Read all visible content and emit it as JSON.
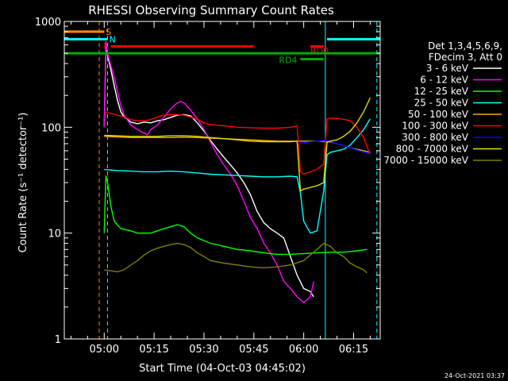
{
  "chart_data": {
    "type": "line",
    "title": "RHESSI Observing Summary Count Rates",
    "xlabel": "Start Time (04-Oct-03 04:45:02)",
    "ylabel": "Count Rate (s⁻¹ detector⁻¹)",
    "y_scale": "log",
    "ylim": [
      1,
      1000
    ],
    "y_ticks": [
      {
        "value": 1,
        "label": "1"
      },
      {
        "value": 10,
        "label": "10"
      },
      {
        "value": 100,
        "label": "100"
      },
      {
        "value": 1000,
        "label": "1000"
      }
    ],
    "xlim_minutes": [
      -12,
      83
    ],
    "x_ticks": [
      {
        "minute": 0,
        "label": "05:00"
      },
      {
        "minute": 15,
        "label": "05:15"
      },
      {
        "minute": 30,
        "label": "05:30"
      },
      {
        "minute": 45,
        "label": "05:45"
      },
      {
        "minute": 60,
        "label": "06:00"
      },
      {
        "minute": 75,
        "label": "06:15"
      }
    ],
    "legend_header": [
      "Det 1,3,4,5,6,9,",
      "FDecim 3, Att 0"
    ],
    "legend_position": "right",
    "series": [
      {
        "name": "3 - 6 keV",
        "color": "#ffffff",
        "points": [
          [
            0,
            100
          ],
          [
            0.5,
            550
          ],
          [
            1,
            480
          ],
          [
            2,
            350
          ],
          [
            3,
            250
          ],
          [
            4,
            180
          ],
          [
            5,
            140
          ],
          [
            6,
            125
          ],
          [
            8,
            112
          ],
          [
            10,
            108
          ],
          [
            12,
            112
          ],
          [
            14,
            110
          ],
          [
            16,
            115
          ],
          [
            18,
            118
          ],
          [
            20,
            124
          ],
          [
            22,
            130
          ],
          [
            24,
            132
          ],
          [
            26,
            128
          ],
          [
            28,
            110
          ],
          [
            30,
            92
          ],
          [
            32,
            75
          ],
          [
            34,
            62
          ],
          [
            36,
            52
          ],
          [
            38,
            44
          ],
          [
            40,
            37
          ],
          [
            42,
            30
          ],
          [
            44,
            23
          ],
          [
            46,
            16
          ],
          [
            48,
            12.5
          ],
          [
            50,
            11
          ],
          [
            52,
            10
          ],
          [
            54,
            9
          ],
          [
            56,
            6
          ],
          [
            58,
            4
          ],
          [
            60,
            3
          ],
          [
            62,
            2.8
          ],
          [
            63,
            2.5
          ]
        ]
      },
      {
        "name": "6 - 12 keV",
        "color": "#ff00ff",
        "points": [
          [
            0,
            100
          ],
          [
            0.5,
            650
          ],
          [
            1,
            500
          ],
          [
            2,
            380
          ],
          [
            3,
            300
          ],
          [
            4,
            220
          ],
          [
            5,
            160
          ],
          [
            6,
            130
          ],
          [
            8,
            105
          ],
          [
            10,
            95
          ],
          [
            12,
            88
          ],
          [
            13,
            85
          ],
          [
            14,
            95
          ],
          [
            16,
            105
          ],
          [
            18,
            125
          ],
          [
            20,
            150
          ],
          [
            22,
            170
          ],
          [
            23,
            175
          ],
          [
            24,
            170
          ],
          [
            26,
            145
          ],
          [
            28,
            120
          ],
          [
            30,
            95
          ],
          [
            32,
            72
          ],
          [
            34,
            55
          ],
          [
            36,
            44
          ],
          [
            38,
            36
          ],
          [
            40,
            28
          ],
          [
            42,
            20
          ],
          [
            44,
            14
          ],
          [
            46,
            11
          ],
          [
            48,
            8
          ],
          [
            50,
            6.5
          ],
          [
            52,
            5
          ],
          [
            54,
            3.5
          ],
          [
            56,
            3
          ],
          [
            58,
            2.5
          ],
          [
            60,
            2.2
          ],
          [
            62,
            2.5
          ],
          [
            63,
            3.5
          ]
        ]
      },
      {
        "name": "12 - 25 keV",
        "color": "#00ff00",
        "points": [
          [
            0,
            10
          ],
          [
            0.5,
            35
          ],
          [
            1,
            30
          ],
          [
            2,
            18
          ],
          [
            3,
            13
          ],
          [
            5,
            11
          ],
          [
            8,
            10.5
          ],
          [
            10,
            10
          ],
          [
            12,
            10
          ],
          [
            14,
            10
          ],
          [
            16,
            10.5
          ],
          [
            18,
            11
          ],
          [
            20,
            11.5
          ],
          [
            22,
            12
          ],
          [
            24,
            11.5
          ],
          [
            26,
            10
          ],
          [
            28,
            9
          ],
          [
            30,
            8.5
          ],
          [
            32,
            8
          ],
          [
            36,
            7.5
          ],
          [
            40,
            7
          ],
          [
            44,
            6.8
          ],
          [
            48,
            6.5
          ],
          [
            52,
            6.3
          ],
          [
            56,
            6.3
          ],
          [
            60,
            6.4
          ],
          [
            64,
            6.5
          ],
          [
            68,
            6.6
          ],
          [
            72,
            6.6
          ],
          [
            76,
            6.8
          ],
          [
            79,
            7
          ]
        ]
      },
      {
        "name": "25 - 50 keV",
        "color": "#00ffff",
        "points": [
          [
            0,
            40
          ],
          [
            4,
            39
          ],
          [
            8,
            38.5
          ],
          [
            12,
            38
          ],
          [
            16,
            38
          ],
          [
            20,
            38.5
          ],
          [
            24,
            38
          ],
          [
            28,
            37
          ],
          [
            32,
            36
          ],
          [
            36,
            35.5
          ],
          [
            40,
            35
          ],
          [
            44,
            34.5
          ],
          [
            48,
            34
          ],
          [
            52,
            34
          ],
          [
            56,
            34.5
          ],
          [
            58,
            34
          ],
          [
            59,
            24
          ],
          [
            60,
            13
          ],
          [
            62,
            10
          ],
          [
            64,
            10.5
          ],
          [
            66,
            25
          ],
          [
            67,
            55
          ],
          [
            68,
            58
          ],
          [
            70,
            60
          ],
          [
            72,
            62
          ],
          [
            74,
            68
          ],
          [
            76,
            80
          ],
          [
            78,
            95
          ],
          [
            80,
            120
          ]
        ]
      },
      {
        "name": "50 - 100 keV",
        "color": "#ffa500",
        "points": [
          [
            0,
            82
          ],
          [
            4,
            81
          ],
          [
            8,
            80
          ],
          [
            12,
            80
          ],
          [
            16,
            80
          ],
          [
            20,
            80
          ],
          [
            24,
            80.5
          ],
          [
            28,
            80
          ],
          [
            32,
            79
          ],
          [
            36,
            78
          ],
          [
            40,
            77
          ],
          [
            44,
            76
          ],
          [
            48,
            75
          ],
          [
            52,
            74
          ],
          [
            56,
            74
          ],
          [
            60,
            74
          ],
          [
            64,
            74
          ],
          [
            68,
            73
          ],
          [
            70,
            70
          ],
          [
            72,
            67
          ],
          [
            74,
            64
          ],
          [
            76,
            62
          ],
          [
            78,
            60
          ],
          [
            80,
            58
          ]
        ]
      },
      {
        "name": "100 - 300 keV",
        "color": "#ff0000",
        "points": [
          [
            0,
            140
          ],
          [
            2,
            135
          ],
          [
            4,
            130
          ],
          [
            6,
            125
          ],
          [
            8,
            118
          ],
          [
            10,
            115
          ],
          [
            12,
            115
          ],
          [
            14,
            118
          ],
          [
            16,
            125
          ],
          [
            18,
            130
          ],
          [
            20,
            132
          ],
          [
            22,
            132
          ],
          [
            24,
            130
          ],
          [
            26,
            125
          ],
          [
            28,
            118
          ],
          [
            30,
            110
          ],
          [
            32,
            106
          ],
          [
            36,
            103
          ],
          [
            40,
            100
          ],
          [
            44,
            99
          ],
          [
            48,
            98
          ],
          [
            52,
            98
          ],
          [
            56,
            100
          ],
          [
            58,
            103
          ],
          [
            59,
            38
          ],
          [
            60,
            36
          ],
          [
            62,
            38
          ],
          [
            64,
            40
          ],
          [
            66,
            45
          ],
          [
            67,
            120
          ],
          [
            68,
            122
          ],
          [
            70,
            121
          ],
          [
            72,
            119
          ],
          [
            74,
            115
          ],
          [
            76,
            100
          ],
          [
            78,
            80
          ],
          [
            80,
            55
          ]
        ]
      },
      {
        "name": "300 - 800 keV",
        "color": "#0000ff",
        "points": [
          [
            58,
            70
          ],
          [
            60,
            72
          ],
          [
            62,
            73
          ],
          [
            64,
            74
          ],
          [
            66,
            75
          ],
          [
            68,
            74
          ],
          [
            70,
            70
          ],
          [
            72,
            67
          ],
          [
            74,
            64
          ],
          [
            76,
            61
          ],
          [
            78,
            58
          ],
          [
            80,
            56
          ]
        ]
      },
      {
        "name": "800 - 7000 keV",
        "color": "#dddd00",
        "points": [
          [
            0,
            84
          ],
          [
            4,
            83
          ],
          [
            8,
            82
          ],
          [
            12,
            82
          ],
          [
            16,
            82
          ],
          [
            20,
            83
          ],
          [
            24,
            83
          ],
          [
            28,
            82
          ],
          [
            32,
            80
          ],
          [
            36,
            78
          ],
          [
            40,
            76
          ],
          [
            44,
            74
          ],
          [
            48,
            73
          ],
          [
            52,
            73
          ],
          [
            56,
            73
          ],
          [
            58,
            74
          ],
          [
            59,
            25
          ],
          [
            60,
            26
          ],
          [
            62,
            27
          ],
          [
            64,
            28
          ],
          [
            66,
            30
          ],
          [
            67,
            72
          ],
          [
            68,
            74
          ],
          [
            70,
            76
          ],
          [
            72,
            82
          ],
          [
            74,
            92
          ],
          [
            76,
            110
          ],
          [
            78,
            140
          ],
          [
            80,
            190
          ]
        ]
      },
      {
        "name": "7000 - 15000 keV",
        "color": "#807d00",
        "points": [
          [
            0,
            4.5
          ],
          [
            2,
            4.4
          ],
          [
            4,
            4.3
          ],
          [
            6,
            4.5
          ],
          [
            8,
            5
          ],
          [
            10,
            5.5
          ],
          [
            12,
            6.2
          ],
          [
            14,
            6.8
          ],
          [
            16,
            7.2
          ],
          [
            18,
            7.5
          ],
          [
            20,
            7.8
          ],
          [
            22,
            8
          ],
          [
            24,
            7.8
          ],
          [
            26,
            7.3
          ],
          [
            28,
            6.5
          ],
          [
            30,
            6
          ],
          [
            32,
            5.5
          ],
          [
            36,
            5.2
          ],
          [
            40,
            5
          ],
          [
            44,
            4.8
          ],
          [
            48,
            4.7
          ],
          [
            52,
            4.8
          ],
          [
            56,
            5
          ],
          [
            60,
            5.5
          ],
          [
            64,
            7
          ],
          [
            66,
            8
          ],
          [
            68,
            7.5
          ],
          [
            70,
            6.5
          ],
          [
            72,
            6
          ],
          [
            74,
            5.2
          ],
          [
            76,
            4.8
          ],
          [
            78,
            4.5
          ],
          [
            79,
            4.2
          ]
        ]
      }
    ],
    "segments": [
      {
        "label": "S",
        "color": "#ff8800",
        "y": 800,
        "x0": -12,
        "x1": 0
      },
      {
        "label": "N",
        "color": "#00ffff",
        "y": 680,
        "x0": -12,
        "x1": 1,
        "x2": 67,
        "x3": 83
      },
      {
        "label": "F",
        "color": "#ff0000",
        "y": 580,
        "x0": 2,
        "x1": 45
      },
      {
        "label": "RD0",
        "color": "#ff0000",
        "y": 580,
        "x0": 62,
        "x1": 66
      },
      {
        "label": "",
        "color": "#00aa00",
        "y": 500,
        "x0": -12,
        "x1": 83
      },
      {
        "label": "RD4",
        "color": "#00aa00",
        "y": 440,
        "x0": 59,
        "x1": 66
      }
    ],
    "vlines": [
      {
        "minute": -12,
        "color": "#00ffff",
        "style": "solid"
      },
      {
        "minute": -1.5,
        "color": "#ff8800",
        "style": "dashed"
      },
      {
        "minute": 1,
        "color": "#00ffff",
        "style": "dashed"
      },
      {
        "minute": 66.5,
        "color": "#00ffff",
        "style": "solid"
      },
      {
        "minute": 82,
        "color": "#00ffff",
        "style": "dashed"
      }
    ]
  },
  "footer_timestamp": "24-Oct-2021 03:37"
}
